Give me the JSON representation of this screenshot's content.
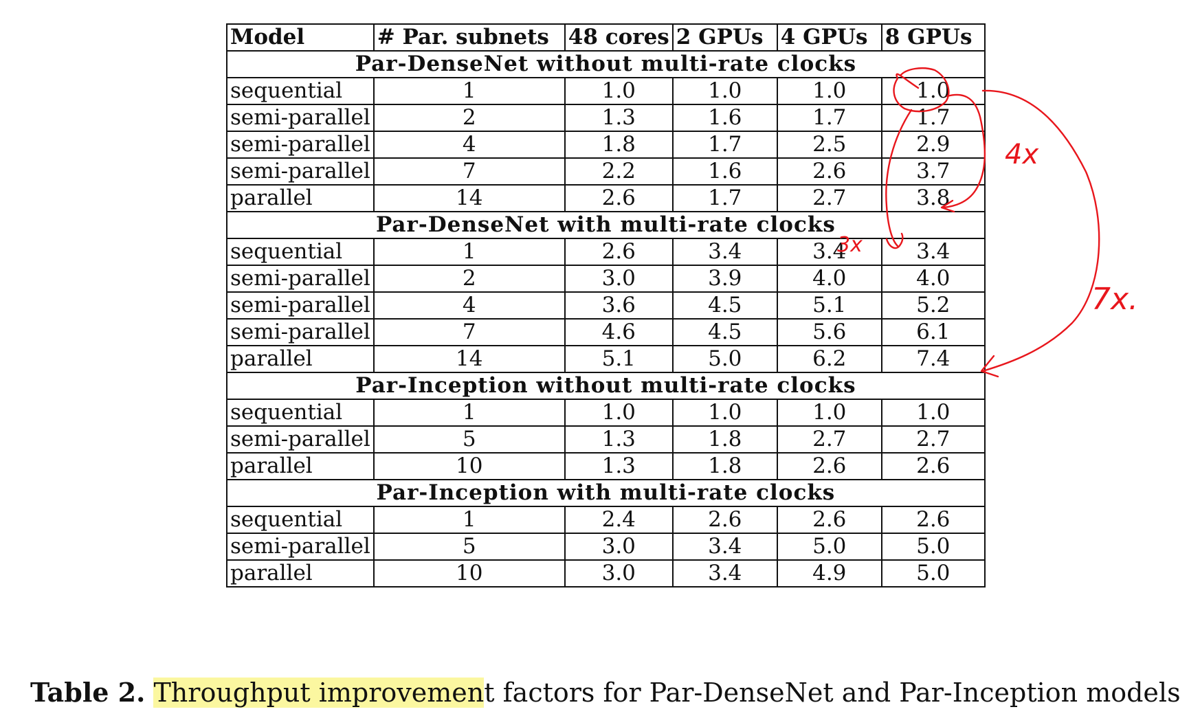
{
  "table": {
    "headers": [
      "Model",
      "# Par. subnets",
      "48 cores",
      "2 GPUs",
      "4 GPUs",
      "8 GPUs"
    ],
    "sections": [
      {
        "title": "Par-DenseNet without multi-rate clocks",
        "rows": [
          [
            "sequential",
            "1",
            "1.0",
            "1.0",
            "1.0",
            "1.0"
          ],
          [
            "semi-parallel",
            "2",
            "1.3",
            "1.6",
            "1.7",
            "1.7"
          ],
          [
            "semi-parallel",
            "4",
            "1.8",
            "1.7",
            "2.5",
            "2.9"
          ],
          [
            "semi-parallel",
            "7",
            "2.2",
            "1.6",
            "2.6",
            "3.7"
          ],
          [
            "parallel",
            "14",
            "2.6",
            "1.7",
            "2.7",
            "3.8"
          ]
        ]
      },
      {
        "title": "Par-DenseNet with multi-rate clocks",
        "rows": [
          [
            "sequential",
            "1",
            "2.6",
            "3.4",
            "3.4",
            "3.4"
          ],
          [
            "semi-parallel",
            "2",
            "3.0",
            "3.9",
            "4.0",
            "4.0"
          ],
          [
            "semi-parallel",
            "4",
            "3.6",
            "4.5",
            "5.1",
            "5.2"
          ],
          [
            "semi-parallel",
            "7",
            "4.6",
            "4.5",
            "5.6",
            "6.1"
          ],
          [
            "parallel",
            "14",
            "5.1",
            "5.0",
            "6.2",
            "7.4"
          ]
        ]
      },
      {
        "title": "Par-Inception without multi-rate clocks",
        "rows": [
          [
            "sequential",
            "1",
            "1.0",
            "1.0",
            "1.0",
            "1.0"
          ],
          [
            "semi-parallel",
            "5",
            "1.3",
            "1.8",
            "2.7",
            "2.7"
          ],
          [
            "parallel",
            "10",
            "1.3",
            "1.8",
            "2.6",
            "2.6"
          ]
        ]
      },
      {
        "title": "Par-Inception with multi-rate clocks",
        "rows": [
          [
            "sequential",
            "1",
            "2.4",
            "2.6",
            "2.6",
            "2.6"
          ],
          [
            "semi-parallel",
            "5",
            "3.0",
            "3.4",
            "5.0",
            "5.0"
          ],
          [
            "parallel",
            "10",
            "3.0",
            "3.4",
            "4.9",
            "5.0"
          ]
        ]
      }
    ]
  },
  "annotations": {
    "label_4x": "4x",
    "label_3x": "3x",
    "label_7x": "7x.",
    "color": "#e8161c"
  },
  "caption": {
    "label": "Table 2.",
    "highlight": "Throughput improvemen",
    "rest": "t factors for Par-DenseNet and Par-Inception models",
    "highlight_color": "#fbf7a0"
  }
}
